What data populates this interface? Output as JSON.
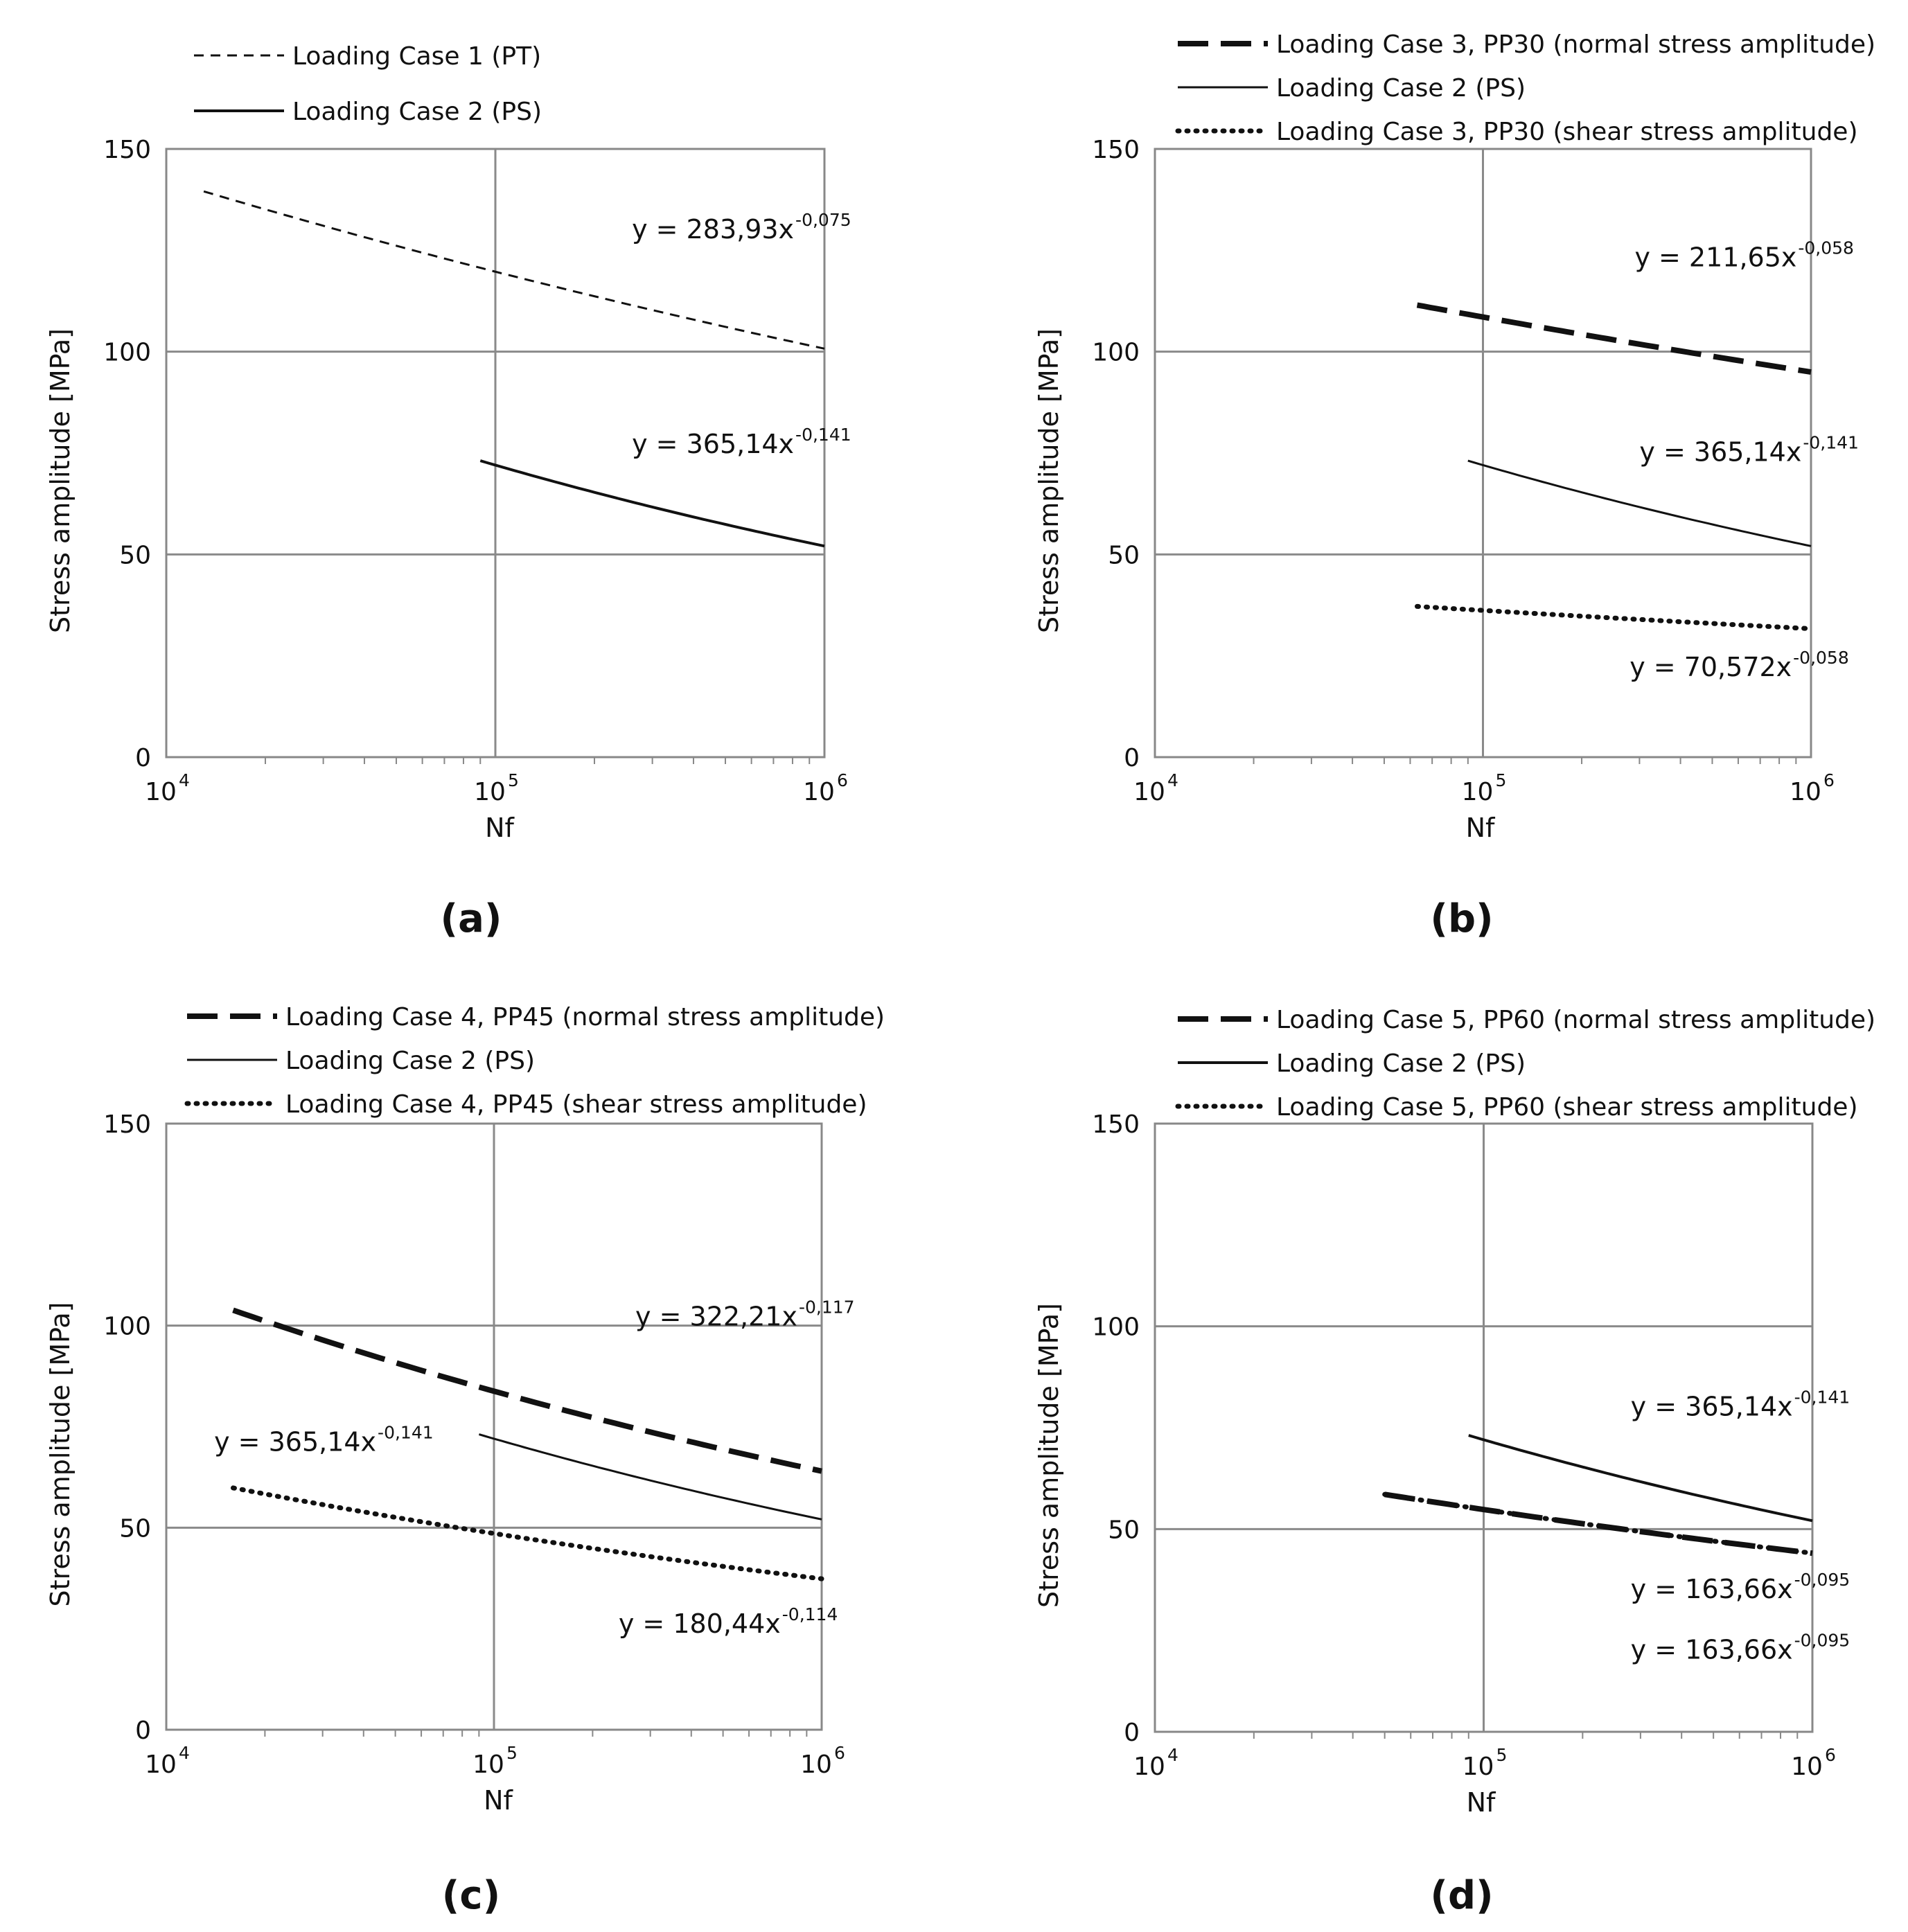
{
  "chart_data": [
    {
      "panel": "(a)",
      "type": "line",
      "xscale": "log",
      "xlim": [
        10000,
        1000000
      ],
      "ylim": [
        0,
        150
      ],
      "xlabel": "Nf",
      "ylabel": "Stress amplitude [MPa]",
      "xticks": [
        "10",
        "10",
        "10"
      ],
      "xtick_exponents": [
        "4",
        "5",
        "6"
      ],
      "yticks": [
        "0",
        "50",
        "100",
        "150"
      ],
      "series": [
        {
          "name": "Loading Case 1 (PT)",
          "style": "dashed",
          "a": 283.93,
          "b": -0.075,
          "x": [
            13000,
            1000000
          ],
          "equation": {
            "prefix": "y = 283,93x",
            "exponent": "-0,075",
            "xv": 260000,
            "yv": 128
          }
        },
        {
          "name": "Loading Case 2 (PS)",
          "style": "solid",
          "a": 365.14,
          "b": -0.141,
          "x": [
            90000,
            1000000
          ],
          "equation": {
            "prefix": "y = 365,14x",
            "exponent": "-0,141",
            "xv": 260000,
            "yv": 75
          }
        }
      ]
    },
    {
      "panel": "(b)",
      "type": "line",
      "xscale": "log",
      "xlim": [
        10000,
        1000000
      ],
      "ylim": [
        0,
        150
      ],
      "xlabel": "Nf",
      "ylabel": "Stress amplitude [MPa]",
      "xticks": [
        "10",
        "10",
        "10"
      ],
      "xtick_exponents": [
        "4",
        "5",
        "6"
      ],
      "yticks": [
        "0",
        "50",
        "100",
        "150"
      ],
      "series": [
        {
          "name": "Loading Case 3, PP30 (normal stress amplitude)",
          "style": "longdash",
          "a": 211.65,
          "b": -0.058,
          "x": [
            63000,
            1000000
          ],
          "equation": {
            "prefix": "y = 211,65x",
            "exponent": "-0,058",
            "xv": 290000,
            "yv": 121
          }
        },
        {
          "name": "Loading Case 2 (PS)",
          "style": "thin",
          "a": 365.14,
          "b": -0.141,
          "x": [
            90000,
            1000000
          ],
          "equation": {
            "prefix": "y = 365,14x",
            "exponent": "-0,141",
            "xv": 300000,
            "yv": 73
          }
        },
        {
          "name": "Loading Case 3, PP30 (shear stress amplitude)",
          "style": "dotted",
          "a": 70.572,
          "b": -0.058,
          "x": [
            63000,
            1000000
          ],
          "equation": {
            "prefix": "y = 70,572x",
            "exponent": "-0,058",
            "xv": 280000,
            "yv": 20
          }
        }
      ]
    },
    {
      "panel": "(c)",
      "type": "line",
      "xscale": "log",
      "xlim": [
        10000,
        1000000
      ],
      "ylim": [
        0,
        150
      ],
      "xlabel": "Nf",
      "ylabel": "Stress amplitude [MPa]",
      "xticks": [
        "10",
        "10",
        "10"
      ],
      "xtick_exponents": [
        "4",
        "5",
        "6"
      ],
      "yticks": [
        "0",
        "50",
        "100",
        "150"
      ],
      "series": [
        {
          "name": "Loading Case 4, PP45 (normal stress amplitude)",
          "style": "longdash",
          "a": 322.21,
          "b": -0.117,
          "x": [
            16000,
            1000000
          ],
          "equation": {
            "prefix": "y = 322,21x",
            "exponent": "-0,117",
            "xv": 270000,
            "yv": 100
          }
        },
        {
          "name": "Loading Case 2 (PS)",
          "style": "thin",
          "a": 365.14,
          "b": -0.141,
          "x": [
            90000,
            1000000
          ],
          "equation": {
            "prefix": "y = 365,14x",
            "exponent": "-0,141",
            "xv": 14000,
            "yv": 69
          }
        },
        {
          "name": "Loading Case 4, PP45 (shear stress amplitude)",
          "style": "dotted",
          "a": 180.44,
          "b": -0.114,
          "x": [
            16000,
            1000000
          ],
          "equation": {
            "prefix": "y = 180,44x",
            "exponent": "-0,114",
            "xv": 240000,
            "yv": 24
          }
        }
      ]
    },
    {
      "panel": "(d)",
      "type": "line",
      "xscale": "log",
      "xlim": [
        10000,
        1000000
      ],
      "ylim": [
        0,
        150
      ],
      "xlabel": "Nf",
      "ylabel": "Stress amplitude [MPa]",
      "xticks": [
        "10",
        "10",
        "10"
      ],
      "xtick_exponents": [
        "4",
        "5",
        "6"
      ],
      "yticks": [
        "0",
        "50",
        "100",
        "150"
      ],
      "series": [
        {
          "name": "Loading Case 5, PP60 (normal stress amplitude)",
          "style": "longdash",
          "a": 163.66,
          "b": -0.095,
          "x": [
            50000,
            1000000
          ],
          "equation": {
            "prefix": "y = 163,66x",
            "exponent": "-0,095",
            "xv": 280000,
            "yv": 33
          }
        },
        {
          "name": "Loading Case 2 (PS)",
          "style": "solid",
          "a": 365.14,
          "b": -0.141,
          "x": [
            90000,
            1000000
          ],
          "equation": {
            "prefix": "y = 365,14x",
            "exponent": "-0,141",
            "xv": 280000,
            "yv": 78
          }
        },
        {
          "name": "Loading Case 5, PP60 (shear stress amplitude)",
          "style": "dotted",
          "a": 163.66,
          "b": -0.095,
          "x": [
            50000,
            1000000
          ],
          "equation": {
            "prefix": "y = 163,66x",
            "exponent": "-0,095",
            "xv": 280000,
            "yv": 18
          }
        }
      ]
    }
  ]
}
